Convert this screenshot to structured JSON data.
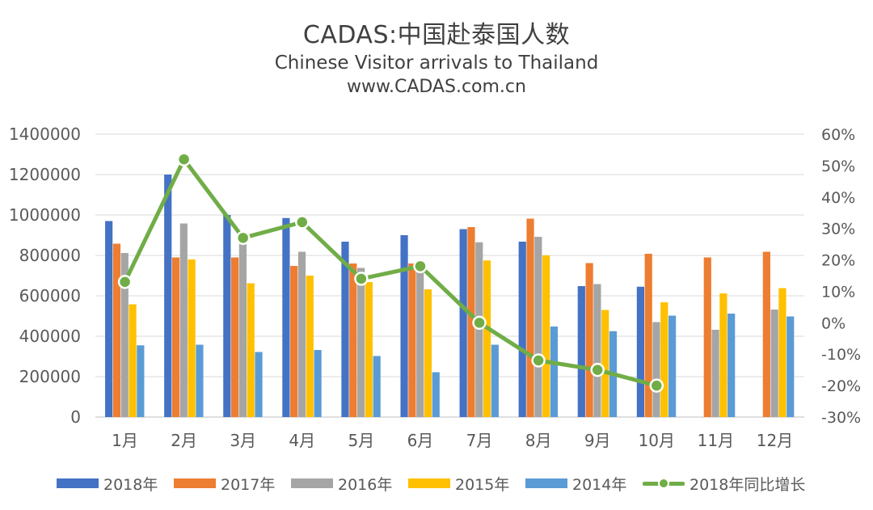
{
  "header": {
    "title": "CADAS:中国赴泰国人数",
    "subtitle": "Chinese Visitor arrivals to Thailand",
    "website": "www.CADAS.com.cn"
  },
  "chart_data": {
    "type": "bar",
    "title": "CADAS:中国赴泰国人数",
    "subtitle": "Chinese Visitor arrivals to Thailand",
    "categories": [
      "1月",
      "2月",
      "3月",
      "4月",
      "5月",
      "6月",
      "7月",
      "8月",
      "9月",
      "10月",
      "11月",
      "12月"
    ],
    "series": [
      {
        "name": "2018年",
        "color": "#4472c4",
        "values": [
          970000,
          1200000,
          1000000,
          985000,
          868000,
          900000,
          930000,
          868000,
          648000,
          645000,
          null,
          null
        ]
      },
      {
        "name": "2017年",
        "color": "#ed7d31",
        "values": [
          858000,
          790000,
          790000,
          748000,
          760000,
          760000,
          940000,
          982000,
          762000,
          808000,
          790000,
          818000
        ]
      },
      {
        "name": "2016年",
        "color": "#a5a5a5",
        "values": [
          812000,
          958000,
          860000,
          818000,
          738000,
          740000,
          865000,
          892000,
          658000,
          470000,
          432000,
          532000
        ]
      },
      {
        "name": "2015年",
        "color": "#ffc000",
        "values": [
          558000,
          780000,
          662000,
          700000,
          668000,
          632000,
          775000,
          800000,
          530000,
          568000,
          612000,
          638000
        ]
      },
      {
        "name": "2014年",
        "color": "#5b9bd5",
        "values": [
          355000,
          358000,
          322000,
          332000,
          302000,
          222000,
          358000,
          448000,
          425000,
          502000,
          512000,
          498000
        ]
      }
    ],
    "line_series": {
      "name": "2018年同比增长",
      "color": "#70ad47",
      "axis": "right",
      "values": [
        0.13,
        0.52,
        0.27,
        0.32,
        0.14,
        0.18,
        0.0,
        -0.12,
        -0.15,
        -0.2,
        null,
        null
      ]
    },
    "y_left": {
      "min": 0,
      "max": 1400000,
      "step": 200000,
      "ticks": [
        "0",
        "200000",
        "400000",
        "600000",
        "800000",
        "1000000",
        "1200000",
        "1400000"
      ]
    },
    "y_right": {
      "min": -0.3,
      "max": 0.6,
      "step": 0.1,
      "ticks": [
        "-30%",
        "-20%",
        "-10%",
        "0%",
        "10%",
        "20%",
        "30%",
        "40%",
        "50%",
        "60%"
      ]
    },
    "grid": true,
    "legend_position": "bottom"
  },
  "legend": {
    "items": [
      "2018年",
      "2017年",
      "2016年",
      "2015年",
      "2014年",
      "2018年同比增长"
    ]
  }
}
